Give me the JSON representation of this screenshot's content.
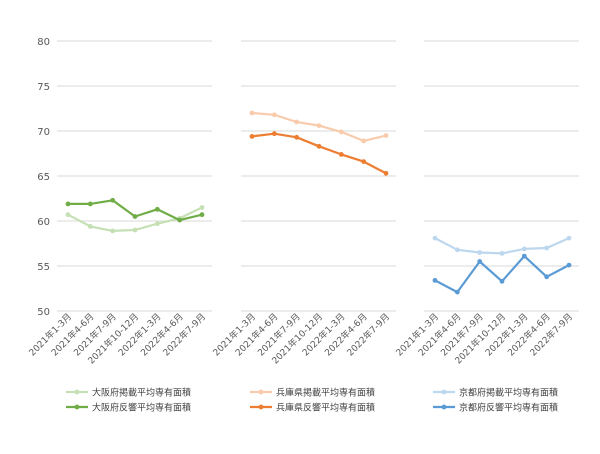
{
  "chart_data": {
    "type": "line",
    "ylim": [
      50,
      80
    ],
    "y_ticks": [
      "50",
      "55",
      "60",
      "65",
      "70",
      "75",
      "80"
    ],
    "grid": true,
    "categories": [
      "2021年1-3月",
      "2021年4-6月",
      "2021年7-9月",
      "2021年10-12月",
      "2022年1-3月",
      "2022年4-6月",
      "2022年7-9月"
    ],
    "panels": [
      {
        "series": [
          {
            "name": "大阪府掲載平均専有面積",
            "color": "#c5e0b4",
            "values": [
              60.7,
              59.4,
              58.9,
              59.0,
              59.7,
              60.3,
              61.5
            ]
          },
          {
            "name": "大阪府反響平均専有面積",
            "color": "#70ad47",
            "values": [
              61.9,
              61.9,
              62.3,
              60.5,
              61.3,
              60.1,
              60.7
            ]
          }
        ]
      },
      {
        "series": [
          {
            "name": "兵庫県掲載平均専有面積",
            "color": "#f8cbad",
            "values": [
              72.0,
              71.8,
              71.0,
              70.6,
              69.9,
              68.9,
              69.5
            ]
          },
          {
            "name": "兵庫県反響平均専有面積",
            "color": "#ed7d31",
            "values": [
              69.4,
              69.7,
              69.3,
              68.3,
              67.4,
              66.6,
              65.3
            ]
          }
        ]
      },
      {
        "series": [
          {
            "name": "京都府掲載平均専有面積",
            "color": "#bdd7ee",
            "values": [
              58.1,
              56.8,
              56.5,
              56.4,
              56.9,
              57.0,
              58.1
            ]
          },
          {
            "name": "京都府反響平均専有面積",
            "color": "#5b9bd5",
            "values": [
              53.4,
              52.1,
              55.5,
              53.3,
              56.1,
              53.8,
              55.1
            ]
          }
        ]
      }
    ]
  }
}
